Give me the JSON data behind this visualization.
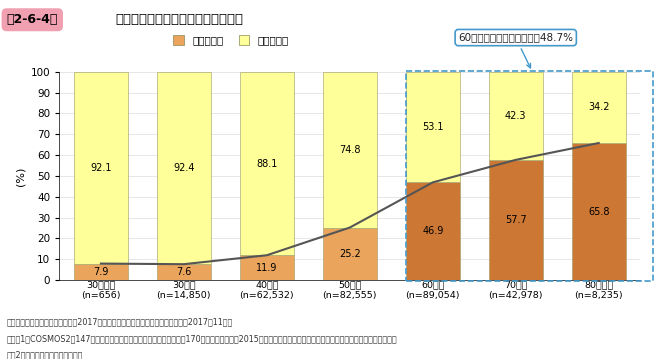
{
  "fig_label": "第2-6-4図",
  "title": "社長年齢別に見た、後継者決定状況",
  "ylabel": "(%)",
  "categories": [
    "30歳未満\n(n=656)",
    "30歳代\n(n=14,850)",
    "40歳代\n(n=62,532)",
    "50歳代\n(n=82,555)",
    "60歳代\n(n=89,054)",
    "70歳代\n(n=42,978)",
    "80歳以上\n(n=8,235)"
  ],
  "successor_present": [
    7.9,
    7.6,
    11.9,
    25.2,
    46.9,
    57.7,
    65.8
  ],
  "successor_absent": [
    92.1,
    92.4,
    88.1,
    74.8,
    53.1,
    42.3,
    34.2
  ],
  "color_present_early": "#EAA45C",
  "color_present_late": "#CC7733",
  "color_absent": "#FFFF99",
  "color_absent_border": "#CCCC66",
  "line_color": "#555555",
  "dashed_box_color": "#4499CC",
  "annotation_text": "60歳以上の後継者不在率：48.7%",
  "legend_present": "後継者あり",
  "legend_absent": "後継者不在",
  "fig_label_bg": "#F0A0B0",
  "note1": "資料：（株）帝国データバンク「2017年後継者問題に関する企業の実態調査」（2017年11月）",
  "note2": "（注）1．COSMOS2（147万社収録）および信用調査報告書ファイル（170万社収録）から、2015年以降の後継者の実態を分析可能な企業を分析対象にしている。",
  "note3": "　　2．対象には、大企業も含む。"
}
